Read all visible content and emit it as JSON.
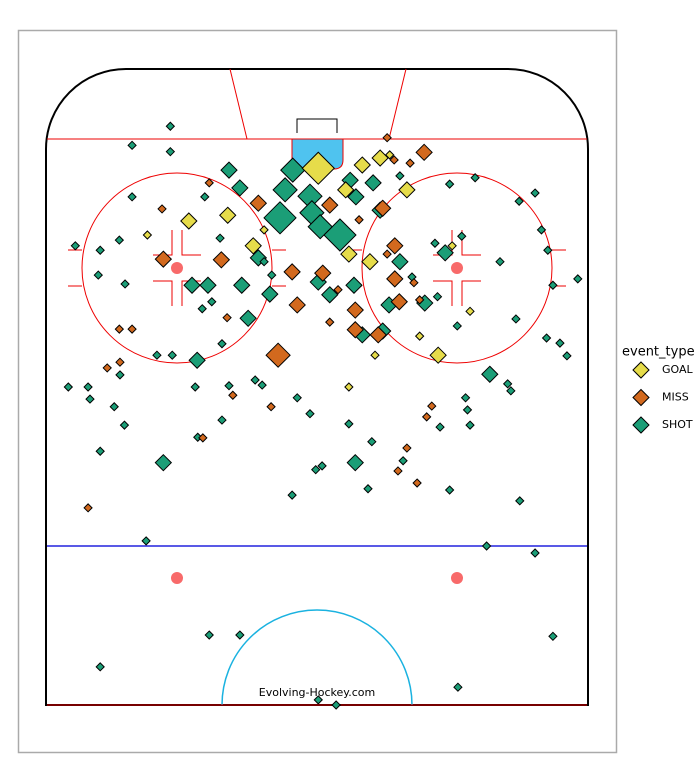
{
  "chart_data": {
    "type": "scatter",
    "watermark": "Evolving-Hockey.com",
    "legend_title": "event_type",
    "legend": "right",
    "xlim": [
      -42.5,
      42.5
    ],
    "ylim": [
      0,
      100
    ],
    "series": [
      {
        "name": "GOAL",
        "color": "#e6dc4a",
        "x": [
          0.2,
          9.9,
          14.1,
          -20.1,
          -14.0,
          -26.6,
          -10.0,
          -8.3,
          5.0,
          8.3,
          21.2,
          24.0,
          16.1,
          19.0,
          9.1,
          5.0,
          4.5,
          7.1,
          11.4
        ],
        "y": [
          84.4,
          86.0,
          81.0,
          76.1,
          77.0,
          73.9,
          72.2,
          74.7,
          70.9,
          69.7,
          72.2,
          61.9,
          58.0,
          55.0,
          55.0,
          50.0,
          81.0,
          84.9,
          86.5
        ],
        "sizes": [
          4,
          2,
          2,
          2,
          2,
          1,
          2,
          1,
          2,
          2,
          1,
          1,
          1,
          2,
          1,
          1,
          2,
          2,
          1
        ]
      },
      {
        "name": "MISS",
        "color": "#d2691e",
        "x": [
          11.0,
          16.8,
          14.6,
          12.1,
          -16.9,
          -24.3,
          -9.2,
          10.3,
          2.0,
          6.6,
          12.2,
          11.0,
          -24.1,
          -15.0,
          -3.9,
          0.9,
          3.3,
          15.2,
          16.1,
          12.9,
          12.2,
          -3.1,
          -14.1,
          6.0,
          2.0,
          6.0,
          -31.0,
          -29.0,
          -6.1,
          -30.9,
          -32.9,
          -13.2,
          -7.2,
          18.0,
          17.2,
          14.1,
          -17.9,
          12.7,
          15.7,
          -35.9,
          9.6
        ],
        "y": [
          89.2,
          86.9,
          85.2,
          85.7,
          82.1,
          78.0,
          78.9,
          78.1,
          78.6,
          76.3,
          72.2,
          70.9,
          70.1,
          70.0,
          68.1,
          67.9,
          65.3,
          66.4,
          63.7,
          63.4,
          67.0,
          62.9,
          60.9,
          62.1,
          60.2,
          59.0,
          59.1,
          59.1,
          55.0,
          53.9,
          53.0,
          48.7,
          46.9,
          47.0,
          45.3,
          40.4,
          42.0,
          36.8,
          34.9,
          31.0,
          58.2
        ],
        "sizes": [
          1,
          2,
          1,
          1,
          1,
          1,
          2,
          2,
          2,
          1,
          2,
          1,
          2,
          2,
          2,
          2,
          1,
          1,
          1,
          2,
          2,
          2,
          1,
          2,
          1,
          2,
          1,
          1,
          3,
          1,
          1,
          1,
          1,
          1,
          1,
          1,
          1,
          1,
          1,
          1,
          2
        ]
      },
      {
        "name": "SHOT",
        "color": "#1b9e77",
        "x": [
          -23.0,
          -29.0,
          -23.0,
          -13.8,
          -12.1,
          -5.8,
          -3.8,
          -5.0,
          -1.1,
          -0.8,
          3.6,
          0.5,
          5.2,
          8.8,
          9.9,
          6.1,
          20.8,
          24.8,
          13.0,
          -17.6,
          -29.0,
          -15.2,
          -9.2,
          -8.3,
          -19.6,
          -17.1,
          -11.8,
          -7.4,
          -16.5,
          -18.0,
          -10.8,
          -7.1,
          0.2,
          5.8,
          2.0,
          11.3,
          16.9,
          18.9,
          20.1,
          18.5,
          22.7,
          13.0,
          14.9,
          7.1,
          10.3,
          22.0,
          28.7,
          31.7,
          34.2,
          35.2,
          36.2,
          37.0,
          40.9,
          -34.0,
          -37.9,
          -34.3,
          -31.0,
          -30.1,
          -25.1,
          -22.7,
          -18.8,
          -19.1,
          -14.9,
          -13.8,
          -9.7,
          -14.9,
          -8.6,
          -3.1,
          5.0,
          -1.1,
          0.8,
          6.0,
          -0.2,
          -3.9,
          -24.1,
          -18.7,
          -34.0,
          -31.8,
          -30.2,
          -39.0,
          -35.9,
          -35.6,
          -30.9,
          8.6,
          8.0,
          13.5,
          19.3,
          23.3,
          23.6,
          24.0,
          20.8,
          31.8,
          29.9,
          27.1,
          36.0,
          38.1,
          39.2,
          31.2,
          30.4,
          -26.8,
          26.6,
          34.2,
          -16.9,
          -12.1,
          37.0,
          -34.0,
          22.1,
          0.2,
          3.0
        ],
        "y": [
          91.0,
          88.0,
          87.0,
          84.1,
          81.3,
          76.6,
          84.1,
          81.0,
          80.0,
          77.4,
          73.9,
          75.2,
          82.5,
          82.1,
          77.8,
          79.9,
          81.9,
          82.9,
          83.2,
          79.9,
          79.9,
          73.4,
          70.3,
          69.7,
          66.0,
          66.0,
          66.0,
          64.6,
          63.4,
          62.3,
          60.8,
          67.6,
          66.5,
          66.0,
          64.5,
          62.9,
          63.2,
          64.2,
          71.1,
          72.6,
          73.7,
          69.7,
          67.3,
          58.2,
          58.8,
          59.6,
          69.7,
          79.2,
          80.5,
          74.7,
          71.5,
          66.0,
          67.0,
          71.5,
          72.2,
          67.6,
          73.1,
          66.2,
          55.0,
          55.0,
          54.2,
          50.0,
          56.8,
          50.2,
          51.1,
          44.8,
          50.3,
          48.3,
          44.2,
          45.8,
          37.6,
          38.1,
          37.0,
          33.0,
          38.1,
          42.1,
          39.9,
          46.9,
          44.0,
          50.0,
          50.0,
          48.1,
          51.9,
          41.4,
          34.0,
          38.4,
          43.7,
          48.3,
          46.4,
          44.0,
          33.8,
          32.1,
          50.5,
          52.0,
          57.7,
          56.9,
          54.9,
          60.7,
          49.4,
          25.8,
          25.0,
          23.9,
          11.0,
          11.0,
          10.8,
          6.0,
          2.8,
          0.8,
          0.0
        ],
        "sizes": [
          1,
          1,
          1,
          2,
          2,
          4,
          3,
          3,
          3,
          3,
          4,
          3,
          2,
          2,
          2,
          2,
          1,
          1,
          1,
          1,
          1,
          1,
          2,
          1,
          2,
          2,
          2,
          2,
          1,
          1,
          2,
          1,
          2,
          2,
          2,
          2,
          2,
          1,
          2,
          1,
          1,
          2,
          1,
          2,
          2,
          1,
          1,
          1,
          1,
          1,
          1,
          1,
          1,
          1,
          1,
          1,
          1,
          1,
          1,
          1,
          2,
          1,
          1,
          1,
          1,
          1,
          1,
          1,
          1,
          1,
          1,
          2,
          1,
          1,
          2,
          1,
          1,
          1,
          1,
          1,
          1,
          1,
          1,
          1,
          1,
          1,
          1,
          1,
          1,
          1,
          1,
          1,
          1,
          2,
          1,
          1,
          1,
          1,
          1,
          1,
          1,
          1,
          1,
          1,
          1,
          1,
          1,
          1,
          1
        ]
      }
    ]
  }
}
